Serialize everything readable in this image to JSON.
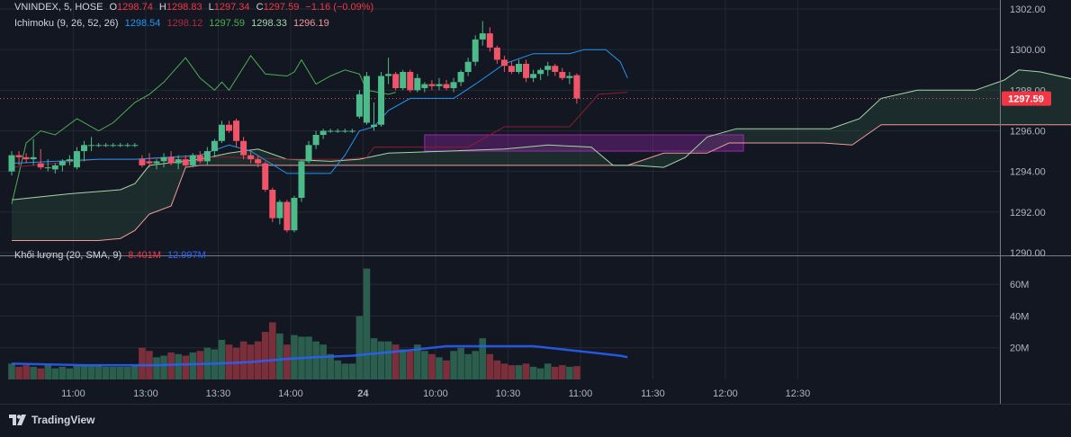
{
  "header": {
    "symbol": "VNINDEX, 5, HOSE",
    "o_label": "O",
    "o_value": "1298.74",
    "h_label": "H",
    "h_value": "1298.83",
    "l_label": "L",
    "l_value": "1297.34",
    "c_label": "C",
    "c_value": "1297.59",
    "change": "−1.16 (−0.09%)"
  },
  "ichimoku_legend": {
    "name": "Ichimoku (9, 26, 52, 26)",
    "values": [
      "1298.54",
      "1298.12",
      "1297.59",
      "1298.33",
      "1296.19"
    ],
    "colors": [
      "#2196f3",
      "#b02a37",
      "#4caf50",
      "#a5d6a7",
      "#ef9a9a"
    ]
  },
  "volume_legend": {
    "name": "Khối lượng (20, SMA, 9)",
    "value1": "8.401M",
    "value2": "12.997M"
  },
  "price_badge": "1297.59",
  "watermark": "TradingView",
  "colors": {
    "bg": "#131722",
    "grid": "#242832",
    "up": "#26a69a",
    "down": "#ef5350",
    "up_candle": "#4dba8a",
    "down_candle": "#f05468",
    "tenkan": "#2196f3",
    "kijun": "#8b1e2e",
    "chikou": "#4caf50",
    "span_a": "#a5d6a7",
    "span_b": "#ef9a9a",
    "vol_sma": "#2962ff",
    "box": "#9c27b0"
  },
  "chart_data": {
    "type": "candlestick",
    "y_ticks": [
      "1302.00",
      "1300.00",
      "1298.00",
      "1296.00",
      "1294.00",
      "1292.00",
      "1290.00"
    ],
    "y_range": [
      1290,
      1302
    ],
    "vol_ticks": [
      "60M",
      "40M",
      "20M"
    ],
    "vol_range": [
      0,
      76
    ],
    "x_ticks": [
      {
        "label": "11:00",
        "idx": 8.5
      },
      {
        "label": "13:00",
        "idx": 18.5
      },
      {
        "label": "13:30",
        "idx": 28.5
      },
      {
        "label": "14:00",
        "idx": 38.5
      },
      {
        "label": "24",
        "idx": 48.5
      },
      {
        "label": "10:00",
        "idx": 58.5
      },
      {
        "label": "10:30",
        "idx": 68.5
      },
      {
        "label": "11:00",
        "idx": 78.5
      },
      {
        "label": "11:30",
        "idx": 88.5
      },
      {
        "label": "12:00",
        "idx": 98.5
      },
      {
        "label": "12:30",
        "idx": 108.5
      }
    ],
    "candles": [
      {
        "o": 1294.0,
        "h": 1295.0,
        "l": 1293.8,
        "c": 1294.8,
        "v": 10
      },
      {
        "o": 1294.8,
        "h": 1295.0,
        "l": 1294.3,
        "c": 1294.7,
        "v": 8
      },
      {
        "o": 1294.7,
        "h": 1294.9,
        "l": 1294.4,
        "c": 1294.6,
        "v": 9
      },
      {
        "o": 1294.6,
        "h": 1295.6,
        "l": 1294.3,
        "c": 1294.7,
        "v": 8
      },
      {
        "o": 1294.4,
        "h": 1295.1,
        "l": 1294.1,
        "c": 1294.2,
        "v": 7
      },
      {
        "o": 1294.2,
        "h": 1294.6,
        "l": 1294.0,
        "c": 1294.2,
        "v": 9
      },
      {
        "o": 1294.1,
        "h": 1294.4,
        "l": 1293.9,
        "c": 1294.3,
        "v": 7
      },
      {
        "o": 1294.3,
        "h": 1294.6,
        "l": 1294.0,
        "c": 1294.5,
        "v": 8
      },
      {
        "o": 1294.5,
        "h": 1294.8,
        "l": 1294.3,
        "c": 1294.6,
        "v": 7
      },
      {
        "o": 1294.2,
        "h": 1295.2,
        "l": 1294.1,
        "c": 1295.0,
        "v": 9
      },
      {
        "o": 1295.0,
        "h": 1295.5,
        "l": 1294.5,
        "c": 1295.3,
        "v": 9
      },
      {
        "o": 1295.3,
        "h": 1295.7,
        "l": 1295.0,
        "c": 1295.3,
        "v": 9
      },
      {
        "o": 1295.3,
        "h": 1295.4,
        "l": 1295.2,
        "c": 1295.3,
        "v": 9
      },
      {
        "o": 1295.3,
        "h": 1295.4,
        "l": 1295.2,
        "c": 1295.3,
        "v": 8
      },
      {
        "o": 1295.3,
        "h": 1295.4,
        "l": 1295.2,
        "c": 1295.3,
        "v": 8
      },
      {
        "o": 1295.3,
        "h": 1295.4,
        "l": 1295.2,
        "c": 1295.3,
        "v": 8
      },
      {
        "o": 1295.3,
        "h": 1295.4,
        "l": 1295.2,
        "c": 1295.3,
        "v": 8
      },
      {
        "o": 1295.3,
        "h": 1295.4,
        "l": 1295.2,
        "c": 1295.3,
        "v": 9
      },
      {
        "o": 1294.6,
        "h": 1294.8,
        "l": 1294.2,
        "c": 1294.3,
        "v": 20
      },
      {
        "o": 1294.5,
        "h": 1294.9,
        "l": 1294.2,
        "c": 1294.4,
        "v": 18
      },
      {
        "o": 1294.4,
        "h": 1294.6,
        "l": 1294.1,
        "c": 1294.5,
        "v": 14
      },
      {
        "o": 1294.5,
        "h": 1294.9,
        "l": 1294.2,
        "c": 1294.7,
        "v": 15
      },
      {
        "o": 1294.7,
        "h": 1295.0,
        "l": 1294.3,
        "c": 1294.4,
        "v": 17
      },
      {
        "o": 1294.4,
        "h": 1294.8,
        "l": 1294.1,
        "c": 1294.6,
        "v": 16
      },
      {
        "o": 1294.6,
        "h": 1294.8,
        "l": 1294.2,
        "c": 1294.3,
        "v": 15
      },
      {
        "o": 1294.3,
        "h": 1294.9,
        "l": 1294.2,
        "c": 1294.8,
        "v": 17
      },
      {
        "o": 1294.8,
        "h": 1295.0,
        "l": 1294.4,
        "c": 1294.5,
        "v": 18
      },
      {
        "o": 1294.5,
        "h": 1295.2,
        "l": 1294.3,
        "c": 1295.0,
        "v": 20
      },
      {
        "o": 1295.0,
        "h": 1295.6,
        "l": 1294.7,
        "c": 1295.5,
        "v": 19
      },
      {
        "o": 1295.5,
        "h": 1296.5,
        "l": 1295.4,
        "c": 1296.3,
        "v": 25
      },
      {
        "o": 1296.3,
        "h": 1296.5,
        "l": 1295.9,
        "c": 1296.0,
        "v": 22
      },
      {
        "o": 1296.5,
        "h": 1296.6,
        "l": 1295.2,
        "c": 1295.5,
        "v": 20
      },
      {
        "o": 1295.5,
        "h": 1295.7,
        "l": 1294.6,
        "c": 1294.8,
        "v": 24
      },
      {
        "o": 1294.8,
        "h": 1295.0,
        "l": 1294.4,
        "c": 1294.6,
        "v": 22
      },
      {
        "o": 1294.6,
        "h": 1294.8,
        "l": 1294.2,
        "c": 1294.4,
        "v": 24
      },
      {
        "o": 1294.4,
        "h": 1294.5,
        "l": 1293.0,
        "c": 1293.1,
        "v": 30
      },
      {
        "o": 1293.1,
        "h": 1293.2,
        "l": 1291.5,
        "c": 1291.7,
        "v": 36
      },
      {
        "o": 1291.7,
        "h": 1292.6,
        "l": 1291.4,
        "c": 1292.5,
        "v": 29
      },
      {
        "o": 1292.5,
        "h": 1292.6,
        "l": 1291.0,
        "c": 1291.1,
        "v": 22
      },
      {
        "o": 1291.1,
        "h": 1292.8,
        "l": 1291.0,
        "c": 1292.7,
        "v": 28
      },
      {
        "o": 1292.7,
        "h": 1294.6,
        "l": 1292.5,
        "c": 1294.5,
        "v": 27
      },
      {
        "o": 1294.5,
        "h": 1295.5,
        "l": 1294.4,
        "c": 1295.3,
        "v": 27
      },
      {
        "o": 1295.3,
        "h": 1296.0,
        "l": 1295.1,
        "c": 1295.8,
        "v": 24
      },
      {
        "o": 1295.8,
        "h": 1296.1,
        "l": 1295.6,
        "c": 1296.0,
        "v": 22
      },
      {
        "o": 1296.0,
        "h": 1296.1,
        "l": 1295.9,
        "c": 1296.0,
        "v": 16
      },
      {
        "o": 1296.0,
        "h": 1296.1,
        "l": 1295.9,
        "c": 1296.0,
        "v": 12
      },
      {
        "o": 1296.0,
        "h": 1296.1,
        "l": 1295.9,
        "c": 1296.0,
        "v": 10
      },
      {
        "o": 1296.0,
        "h": 1296.1,
        "l": 1295.9,
        "c": 1296.0,
        "v": 10
      },
      {
        "o": 1296.7,
        "h": 1298.0,
        "l": 1296.6,
        "c": 1297.8,
        "v": 40
      },
      {
        "o": 1296.4,
        "h": 1298.9,
        "l": 1296.3,
        "c": 1298.7,
        "v": 70
      },
      {
        "o": 1296.2,
        "h": 1297.4,
        "l": 1296.0,
        "c": 1296.3,
        "v": 26
      },
      {
        "o": 1296.3,
        "h": 1298.9,
        "l": 1296.2,
        "c": 1298.7,
        "v": 24
      },
      {
        "o": 1298.7,
        "h": 1299.6,
        "l": 1298.3,
        "c": 1298.8,
        "v": 24
      },
      {
        "o": 1298.8,
        "h": 1298.9,
        "l": 1298.0,
        "c": 1298.1,
        "v": 22
      },
      {
        "o": 1298.1,
        "h": 1299.0,
        "l": 1298.0,
        "c": 1298.9,
        "v": 19
      },
      {
        "o": 1298.9,
        "h": 1299.0,
        "l": 1297.9,
        "c": 1298.0,
        "v": 18
      },
      {
        "o": 1298.0,
        "h": 1298.8,
        "l": 1297.9,
        "c": 1298.6,
        "v": 22
      },
      {
        "o": 1298.1,
        "h": 1298.4,
        "l": 1297.9,
        "c": 1298.3,
        "v": 18
      },
      {
        "o": 1298.3,
        "h": 1298.5,
        "l": 1298.0,
        "c": 1298.2,
        "v": 16
      },
      {
        "o": 1298.2,
        "h": 1298.6,
        "l": 1298.0,
        "c": 1298.3,
        "v": 14
      },
      {
        "o": 1298.3,
        "h": 1298.5,
        "l": 1298.0,
        "c": 1298.1,
        "v": 12
      },
      {
        "o": 1298.1,
        "h": 1298.6,
        "l": 1297.9,
        "c": 1298.4,
        "v": 18
      },
      {
        "o": 1298.4,
        "h": 1299.0,
        "l": 1298.2,
        "c": 1298.9,
        "v": 20
      },
      {
        "o": 1298.9,
        "h": 1299.6,
        "l": 1298.7,
        "c": 1299.4,
        "v": 16
      },
      {
        "o": 1299.4,
        "h": 1300.7,
        "l": 1299.2,
        "c": 1300.5,
        "v": 18
      },
      {
        "o": 1300.5,
        "h": 1301.4,
        "l": 1300.2,
        "c": 1300.8,
        "v": 26
      },
      {
        "o": 1300.8,
        "h": 1301.1,
        "l": 1299.9,
        "c": 1300.1,
        "v": 16
      },
      {
        "o": 1300.1,
        "h": 1300.2,
        "l": 1299.3,
        "c": 1299.5,
        "v": 12
      },
      {
        "o": 1299.5,
        "h": 1299.7,
        "l": 1298.9,
        "c": 1299.2,
        "v": 10
      },
      {
        "o": 1299.2,
        "h": 1299.4,
        "l": 1298.8,
        "c": 1298.9,
        "v": 9
      },
      {
        "o": 1298.9,
        "h": 1299.5,
        "l": 1298.8,
        "c": 1299.3,
        "v": 9
      },
      {
        "o": 1299.3,
        "h": 1299.5,
        "l": 1298.4,
        "c": 1298.6,
        "v": 10
      },
      {
        "o": 1298.6,
        "h": 1299.0,
        "l": 1298.4,
        "c": 1298.8,
        "v": 8
      },
      {
        "o": 1298.8,
        "h": 1299.1,
        "l": 1298.5,
        "c": 1299.0,
        "v": 7
      },
      {
        "o": 1299.0,
        "h": 1299.4,
        "l": 1298.7,
        "c": 1299.2,
        "v": 10
      },
      {
        "o": 1299.2,
        "h": 1299.3,
        "l": 1298.7,
        "c": 1298.9,
        "v": 8
      },
      {
        "o": 1298.9,
        "h": 1299.1,
        "l": 1298.5,
        "c": 1298.6,
        "v": 9
      },
      {
        "o": 1298.6,
        "h": 1298.9,
        "l": 1298.3,
        "c": 1298.7,
        "v": 8
      },
      {
        "o": 1298.74,
        "h": 1298.83,
        "l": 1297.34,
        "c": 1297.59,
        "v": 8.4
      }
    ],
    "tenkan": [
      [
        0,
        1294.4
      ],
      [
        12,
        1294.6
      ],
      [
        17,
        1294.6
      ],
      [
        26,
        1294.8
      ],
      [
        30,
        1295.3
      ],
      [
        33,
        1295.0
      ],
      [
        38,
        1293.9
      ],
      [
        44,
        1293.9
      ],
      [
        46,
        1294.8
      ],
      [
        48,
        1296.0
      ],
      [
        50,
        1296.2
      ],
      [
        52,
        1297.0
      ],
      [
        55,
        1297.6
      ],
      [
        61,
        1297.6
      ],
      [
        64,
        1298.3
      ],
      [
        68,
        1299.3
      ],
      [
        72,
        1299.8
      ],
      [
        77,
        1299.8
      ],
      [
        79,
        1300.0
      ],
      [
        82,
        1300.0
      ],
      [
        84,
        1299.4
      ],
      [
        85,
        1298.6
      ]
    ],
    "kijun": [
      [
        0,
        1294.2
      ],
      [
        12,
        1294.6
      ],
      [
        17,
        1294.6
      ],
      [
        26,
        1294.7
      ],
      [
        30,
        1294.7
      ],
      [
        38,
        1294.6
      ],
      [
        46,
        1294.6
      ],
      [
        49,
        1294.7
      ],
      [
        50,
        1295.2
      ],
      [
        58,
        1295.2
      ],
      [
        63,
        1295.2
      ],
      [
        68,
        1296.2
      ],
      [
        72,
        1296.2
      ],
      [
        77,
        1296.2
      ],
      [
        81,
        1297.8
      ],
      [
        85,
        1297.9
      ]
    ],
    "chikou": [
      [
        0,
        1292.4
      ],
      [
        2,
        1295.4
      ],
      [
        4,
        1296.0
      ],
      [
        6,
        1295.8
      ],
      [
        9,
        1296.6
      ],
      [
        12,
        1296.0
      ],
      [
        14,
        1296.4
      ],
      [
        17,
        1297.4
      ],
      [
        19,
        1297.8
      ],
      [
        21,
        1298.4
      ],
      [
        24,
        1299.6
      ],
      [
        26,
        1298.6
      ],
      [
        28,
        1298.0
      ],
      [
        29,
        1298.4
      ],
      [
        30,
        1298.0
      ],
      [
        33,
        1299.7
      ],
      [
        35,
        1298.8
      ],
      [
        38,
        1298.7
      ],
      [
        39,
        1298.9
      ],
      [
        40,
        1299.5
      ],
      [
        42,
        1298.3
      ],
      [
        44,
        1298.7
      ],
      [
        46,
        1299.0
      ],
      [
        48,
        1298.8
      ],
      [
        49,
        1298.0
      ],
      [
        52,
        1297.8
      ],
      [
        53,
        1297.9
      ]
    ],
    "span_a": [
      [
        0,
        1292.6
      ],
      [
        8,
        1292.9
      ],
      [
        15,
        1293.1
      ],
      [
        17,
        1293.4
      ],
      [
        19,
        1294.3
      ],
      [
        26,
        1294.6
      ],
      [
        30,
        1294.9
      ],
      [
        34,
        1295.1
      ],
      [
        38,
        1294.6
      ],
      [
        44,
        1294.5
      ],
      [
        48,
        1294.6
      ],
      [
        52,
        1294.9
      ],
      [
        60,
        1295.0
      ],
      [
        68,
        1295.1
      ],
      [
        74,
        1295.3
      ],
      [
        80,
        1295.2
      ],
      [
        83,
        1294.3
      ],
      [
        86,
        1294.3
      ],
      [
        90,
        1294.2
      ],
      [
        93,
        1294.7
      ],
      [
        96,
        1295.7
      ],
      [
        100,
        1296.1
      ],
      [
        113,
        1296.1
      ],
      [
        117,
        1296.6
      ],
      [
        120,
        1297.6
      ],
      [
        125,
        1298.0
      ],
      [
        133,
        1298.0
      ],
      [
        137,
        1298.5
      ],
      [
        139,
        1299.0
      ],
      [
        142,
        1298.9
      ],
      [
        147,
        1298.5
      ]
    ],
    "span_b": [
      [
        0,
        1290.6
      ],
      [
        9,
        1290.6
      ],
      [
        12,
        1290.6
      ],
      [
        15,
        1290.7
      ],
      [
        17,
        1291.1
      ],
      [
        19,
        1291.9
      ],
      [
        22,
        1292.3
      ],
      [
        24,
        1294.2
      ],
      [
        26,
        1294.3
      ],
      [
        38,
        1294.3
      ],
      [
        44,
        1294.3
      ],
      [
        48,
        1294.3
      ],
      [
        56,
        1294.3
      ],
      [
        72,
        1294.3
      ],
      [
        74,
        1294.3
      ],
      [
        80,
        1294.3
      ],
      [
        85,
        1294.3
      ],
      [
        90,
        1294.9
      ],
      [
        96,
        1294.9
      ],
      [
        99,
        1295.4
      ],
      [
        112,
        1295.4
      ],
      [
        116,
        1295.3
      ],
      [
        120,
        1296.3
      ],
      [
        147,
        1296.3
      ]
    ],
    "box": {
      "x0": 57,
      "x1": 101,
      "y_top": 1295.8,
      "y_bot": 1295.0
    },
    "vol_sma": [
      [
        0,
        10
      ],
      [
        10,
        9
      ],
      [
        15,
        9
      ],
      [
        20,
        9
      ],
      [
        28,
        10
      ],
      [
        33,
        11
      ],
      [
        38,
        13
      ],
      [
        42,
        14
      ],
      [
        47,
        15
      ],
      [
        54,
        18
      ],
      [
        58,
        20
      ],
      [
        60,
        21
      ],
      [
        64,
        21
      ],
      [
        72,
        21
      ],
      [
        74,
        20
      ],
      [
        76,
        19
      ],
      [
        80,
        17
      ],
      [
        84,
        15
      ],
      [
        85,
        14
      ]
    ]
  }
}
